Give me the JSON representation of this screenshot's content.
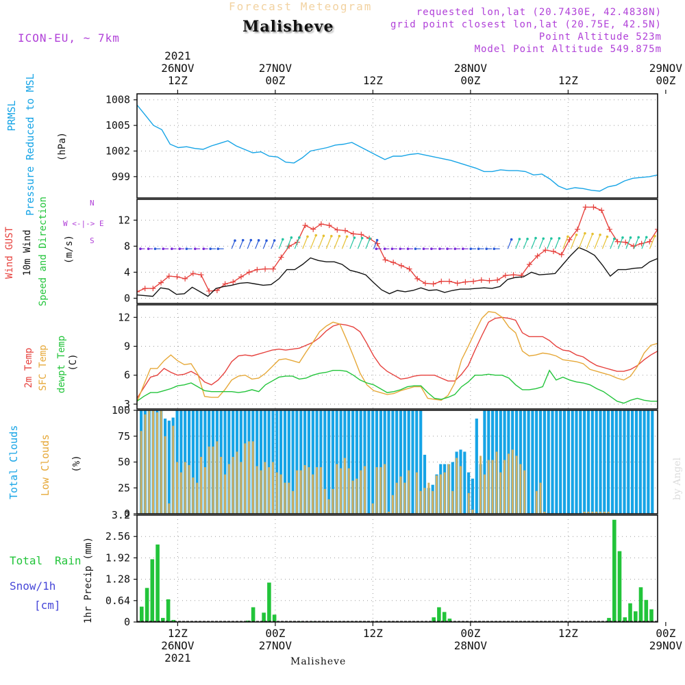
{
  "header": {
    "faint_title": "Forecast Meteogram",
    "location": "Malisheve",
    "model": "ICON-EU, ~ 7km",
    "requested": "requested lon,lat (20.7430E, 42.4838N)",
    "grid_point": "grid point closest lon,lat (20.75E, 42.5N)",
    "point_alt": "Point Altitude 523m",
    "model_alt": "Model Point Altitude 549.875m",
    "watermark": "by Angel",
    "bottom_location": "Malisheve"
  },
  "time_axis": {
    "x_start": 0,
    "x_end": 64,
    "ticks": [
      {
        "x": 5,
        "top": [
          "2021",
          "26NOV",
          "12Z"
        ],
        "bottom": [
          "12Z",
          "26NOV",
          "2021"
        ]
      },
      {
        "x": 17,
        "top": [
          "27NOV",
          "00Z"
        ],
        "bottom": [
          "00Z",
          "27NOV"
        ]
      },
      {
        "x": 29,
        "top": [
          "12Z"
        ],
        "bottom": [
          "12Z"
        ]
      },
      {
        "x": 41,
        "top": [
          "28NOV",
          "00Z"
        ],
        "bottom": [
          "00Z",
          "28NOV"
        ]
      },
      {
        "x": 53,
        "top": [
          "12Z"
        ],
        "bottom": [
          "12Z"
        ]
      },
      {
        "x": 65,
        "top": [
          "29NOV",
          "00Z"
        ],
        "bottom": [
          "00Z",
          "29NOV"
        ]
      }
    ]
  },
  "labels": {
    "prmsl": "PRMSL",
    "prmsl_long": "Pressure Reduced to MSL",
    "hpa": "(hPa)",
    "wind_gust": "Wind GUST",
    "wind_10m": "10m Wind",
    "wind_sd": "Speed and Direction",
    "ms": "(m/s)",
    "compass_n": "N",
    "compass_s": "S",
    "compass_we": "W <-|-> E",
    "temp2m": "2m Temp",
    "sfc": "SFC Temp",
    "dewpt": "dewpt Temp",
    "c": "(C)",
    "total_clouds": "Total Clouds",
    "low_clouds": "Low Clouds",
    "pct": "(%)",
    "total": "Total",
    "rain": "Rain",
    "snow": "Snow/1h",
    "cm": "[cm]",
    "precip": "1hr Precip (mm)"
  },
  "colors": {
    "pressure": "#16a4e6",
    "gust": "#e6403c",
    "wind": "#111111",
    "temp2m": "#e6403c",
    "sfc": "#e6a838",
    "dewpt": "#22c43a",
    "total_clouds": "#16a4e6",
    "low_clouds": "#d4b060",
    "rain": "#22c43a",
    "snow": "#4646d8",
    "title": "#b040d8"
  },
  "chart_data": [
    {
      "type": "line",
      "name": "pressure",
      "y_ticks": [
        999,
        1002,
        1005,
        1008
      ],
      "ylim": [
        996.5,
        1008.7
      ],
      "x": [
        0,
        1,
        2,
        3,
        4,
        5,
        6,
        7,
        8,
        9,
        10,
        11,
        12,
        13,
        14,
        15,
        16,
        17,
        18,
        19,
        20,
        21,
        22,
        23,
        24,
        25,
        26,
        27,
        28,
        29,
        30,
        31,
        32,
        33,
        34,
        35,
        36,
        37,
        38,
        39,
        40,
        41,
        42,
        43,
        44,
        45,
        46,
        47,
        48,
        49,
        50,
        51,
        52,
        53,
        54,
        55,
        56,
        57,
        58,
        59,
        60,
        61,
        62,
        63
      ],
      "series": [
        {
          "values": [
            1007.4,
            1006.2,
            1005.0,
            1004.5,
            1002.8,
            1002.4,
            1002.5,
            1002.3,
            1002.2,
            1002.6,
            1002.9,
            1003.2,
            1002.6,
            1002.2,
            1001.8,
            1001.9,
            1001.4,
            1001.3,
            1000.7,
            1000.6,
            1001.2,
            1002.0,
            1002.2,
            1002.4,
            1002.7,
            1002.8,
            1003.0,
            1002.5,
            1002.0,
            1001.5,
            1001.0,
            1001.4,
            1001.4,
            1001.6,
            1001.7,
            1001.5,
            1001.3,
            1001.1,
            1000.9,
            1000.6,
            1000.3,
            1000.0,
            999.6,
            999.6,
            999.8,
            999.7,
            999.7,
            999.6,
            999.2,
            999.3,
            998.7,
            997.9,
            997.5,
            997.7,
            997.6,
            997.4,
            997.3,
            997.8,
            998.0,
            998.5,
            998.8,
            998.9,
            999.0,
            999.2
          ]
        }
      ]
    },
    {
      "type": "line",
      "name": "wind",
      "y_ticks": [
        0,
        4,
        8,
        12
      ],
      "ylim": [
        -0.8,
        15.2
      ],
      "series": [
        {
          "name": "gust",
          "values": [
            1.0,
            1.5,
            1.5,
            2.4,
            3.4,
            3.3,
            3.0,
            3.8,
            3.6,
            1.1,
            1.2,
            2.2,
            2.5,
            3.3,
            4.0,
            4.4,
            4.5,
            4.5,
            6.3,
            8.0,
            8.6,
            11.2,
            10.6,
            11.4,
            11.2,
            10.5,
            10.4,
            9.9,
            9.8,
            9.2,
            8.4,
            5.9,
            5.5,
            5.0,
            4.5,
            3.0,
            2.3,
            2.2,
            2.6,
            2.6,
            2.3,
            2.5,
            2.6,
            2.8,
            2.7,
            2.8,
            3.5,
            3.6,
            3.5,
            5.2,
            6.5,
            7.4,
            7.2,
            6.7,
            9.0,
            10.6,
            14.0,
            14.0,
            13.5,
            10.6,
            8.7,
            8.6,
            8.0,
            8.4,
            8.7,
            10.6
          ]
        },
        {
          "name": "wind10m",
          "values": [
            0.5,
            0.4,
            0.3,
            1.6,
            1.4,
            0.6,
            0.7,
            1.7,
            1.0,
            0.3,
            1.5,
            1.8,
            2.0,
            2.3,
            2.4,
            2.2,
            2.0,
            2.1,
            3.0,
            4.4,
            4.4,
            5.2,
            6.2,
            5.8,
            5.6,
            5.6,
            5.2,
            4.3,
            4.0,
            3.6,
            2.4,
            1.3,
            0.7,
            1.2,
            1.0,
            1.2,
            1.6,
            1.2,
            1.3,
            0.9,
            1.2,
            1.4,
            1.4,
            1.5,
            1.6,
            1.5,
            1.8,
            2.9,
            3.2,
            3.3,
            4.0,
            3.6,
            3.7,
            3.8,
            5.2,
            6.6,
            7.8,
            7.3,
            6.6,
            5.1,
            3.4,
            4.4,
            4.4,
            4.6,
            4.7,
            5.6,
            6.1
          ]
        }
      ]
    },
    {
      "type": "line",
      "name": "temperature",
      "y_ticks": [
        3,
        6,
        9,
        12
      ],
      "ylim": [
        2.5,
        13.3
      ],
      "series": [
        {
          "name": "temp2m",
          "values": [
            3.6,
            4.7,
            5.8,
            6.0,
            6.7,
            6.3,
            6.0,
            6.1,
            6.4,
            6.0,
            5.3,
            5.0,
            5.5,
            6.3,
            7.4,
            8.0,
            8.1,
            8.0,
            8.2,
            8.4,
            8.6,
            8.7,
            8.6,
            8.7,
            8.8,
            9.1,
            9.4,
            9.9,
            10.6,
            11.1,
            11.3,
            11.2,
            11.0,
            10.5,
            9.3,
            8.0,
            7.0,
            6.4,
            6.0,
            5.6,
            5.7,
            5.9,
            6.0,
            6.0,
            6.0,
            5.7,
            5.4,
            5.4,
            6.1,
            7.0,
            8.6,
            10.1,
            11.5,
            11.9,
            12.0,
            11.9,
            11.7,
            10.4,
            10.0,
            10.0,
            10.0,
            9.6,
            9.0,
            8.6,
            8.5,
            8.1,
            7.9,
            7.4,
            7.0,
            6.8,
            6.6,
            6.4,
            6.4,
            6.6,
            7.0,
            7.6,
            8.1,
            8.5
          ]
        },
        {
          "name": "sfc",
          "values": [
            3.2,
            5.0,
            6.7,
            6.7,
            7.5,
            8.1,
            7.5,
            7.1,
            7.2,
            6.1,
            3.8,
            3.7,
            3.7,
            4.5,
            5.5,
            5.9,
            6.0,
            5.6,
            5.7,
            6.2,
            6.9,
            7.6,
            7.7,
            7.5,
            7.3,
            8.4,
            9.4,
            10.5,
            11.1,
            11.5,
            11.3,
            9.7,
            8.0,
            6.2,
            5.0,
            4.4,
            4.2,
            4.0,
            4.1,
            4.4,
            4.6,
            4.8,
            4.8,
            3.6,
            3.5,
            3.4,
            3.9,
            5.2,
            7.6,
            9.0,
            10.5,
            11.9,
            12.6,
            12.5,
            12.0,
            11.0,
            10.4,
            8.5,
            8.0,
            8.1,
            8.3,
            8.2,
            8.0,
            7.6,
            7.5,
            7.4,
            7.2,
            6.6,
            6.4,
            6.2,
            6.0,
            5.7,
            5.5,
            5.9,
            6.9,
            8.3,
            9.1,
            9.3
          ]
        },
        {
          "name": "dewpt",
          "values": [
            3.3,
            3.8,
            4.2,
            4.2,
            4.4,
            4.6,
            4.9,
            5.0,
            5.2,
            4.8,
            4.4,
            4.3,
            4.3,
            4.3,
            4.3,
            4.2,
            4.3,
            4.5,
            4.3,
            5.0,
            5.4,
            5.8,
            5.9,
            5.9,
            5.6,
            5.7,
            6.0,
            6.2,
            6.3,
            6.5,
            6.5,
            6.4,
            6.0,
            5.5,
            5.2,
            5.0,
            4.6,
            4.2,
            4.3,
            4.5,
            4.8,
            4.9,
            4.9,
            4.2,
            3.6,
            3.5,
            3.7,
            4.0,
            4.8,
            5.3,
            6.0,
            6.0,
            6.1,
            6.0,
            6.0,
            5.7,
            5.0,
            4.5,
            4.5,
            4.6,
            4.8,
            6.5,
            5.5,
            5.8,
            5.5,
            5.3,
            5.2,
            5.0,
            4.6,
            4.3,
            3.8,
            3.3,
            3.1,
            3.4,
            3.6,
            3.4,
            3.3,
            3.3
          ]
        }
      ]
    },
    {
      "type": "bar",
      "name": "clouds",
      "y_ticks": [
        0,
        25,
        50,
        75,
        100
      ],
      "ylim": [
        0,
        100
      ],
      "series": [
        {
          "name": "total_clouds",
          "values": [
            100,
            100,
            100,
            100,
            100,
            100,
            92,
            90,
            93,
            100,
            100,
            100,
            100,
            100,
            100,
            100,
            100,
            100,
            100,
            100,
            100,
            100,
            100,
            100,
            100,
            100,
            100,
            100,
            100,
            100,
            100,
            100,
            100,
            100,
            100,
            100,
            100,
            100,
            100,
            100,
            100,
            100,
            100,
            100,
            100,
            100,
            100,
            100,
            100,
            100,
            100,
            100,
            100,
            100,
            100,
            100,
            100,
            100,
            100,
            100,
            100,
            100,
            100,
            100,
            100,
            100,
            100,
            100,
            100,
            100,
            100,
            57,
            25,
            28,
            38,
            48,
            48,
            48,
            50,
            60,
            62,
            60,
            40,
            34,
            92,
            48,
            100,
            100,
            100,
            100,
            100,
            100,
            100,
            100,
            100,
            100,
            100,
            100,
            100,
            100,
            100,
            100,
            100,
            100,
            100,
            100,
            100,
            100,
            100,
            100,
            100,
            100,
            100,
            100,
            100,
            100,
            100,
            100,
            100,
            100,
            100,
            100,
            100,
            100,
            100,
            100,
            100,
            100,
            100
          ]
        },
        {
          "name": "low_clouds",
          "values": [
            80,
            96,
            100,
            100,
            98,
            100,
            75,
            10,
            85,
            50,
            40,
            50,
            47,
            35,
            30,
            55,
            45,
            65,
            65,
            70,
            55,
            38,
            48,
            55,
            60,
            50,
            68,
            70,
            70,
            46,
            42,
            50,
            45,
            50,
            40,
            38,
            30,
            30,
            22,
            42,
            42,
            47,
            45,
            38,
            45,
            45,
            24,
            14,
            24,
            48,
            44,
            54,
            44,
            32,
            34,
            42,
            46,
            0,
            10,
            45,
            45,
            48,
            2,
            18,
            30,
            36,
            30,
            42,
            0,
            40,
            22,
            25,
            30,
            22,
            37,
            38,
            40,
            48,
            22,
            54,
            46,
            0,
            20,
            4,
            0,
            56,
            38,
            52,
            52,
            60,
            40,
            52,
            58,
            62,
            56,
            48,
            42,
            0,
            0,
            22,
            30,
            2,
            0,
            0,
            0,
            0,
            0,
            0,
            0,
            0,
            0,
            2,
            2,
            2,
            2,
            2,
            2,
            2,
            0
          ]
        }
      ]
    },
    {
      "type": "bar",
      "name": "precip",
      "y_ticks": [
        0,
        0.64,
        1.28,
        1.92,
        2.56,
        3.2
      ],
      "ylim": [
        0,
        3.2
      ],
      "series": [
        {
          "name": "rain",
          "values": [
            0.46,
            1.02,
            1.88,
            2.32,
            0.12,
            0.68,
            0.06,
            0,
            0,
            0,
            0,
            0,
            0,
            0,
            0,
            0,
            0,
            0,
            0,
            0,
            0.04,
            0.44,
            0,
            0.28,
            1.18,
            0.22,
            0,
            0,
            0,
            0,
            0.02,
            0,
            0.02,
            0,
            0,
            0,
            0,
            0,
            0,
            0,
            0,
            0,
            0,
            0,
            0,
            0,
            0,
            0,
            0,
            0,
            0,
            0,
            0,
            0,
            0,
            0.14,
            0.44,
            0.3,
            0.1,
            0,
            0,
            0,
            0,
            0,
            0,
            0,
            0,
            0,
            0,
            0,
            0,
            0,
            0,
            0,
            0,
            0,
            0,
            0,
            0,
            0,
            0,
            0,
            0,
            0,
            0,
            0,
            0,
            0,
            0.12,
            3.06,
            2.12,
            0.14,
            0.56,
            0.32,
            1.04,
            0.66,
            0.38
          ]
        }
      ]
    }
  ]
}
